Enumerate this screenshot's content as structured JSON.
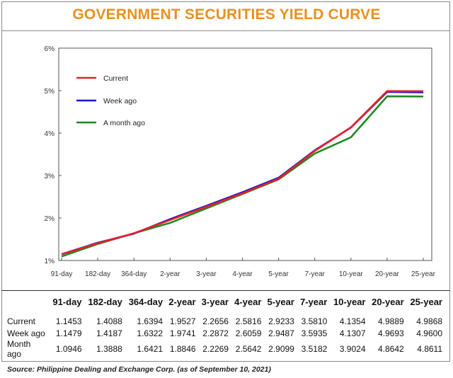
{
  "title": "GOVERNMENT SECURITIES YIELD CURVE",
  "source": "Source: Philippine Dealing and Exchange Corp. (as of September 10, 2021)",
  "chart_data": {
    "type": "line",
    "categories": [
      "91-day",
      "182-day",
      "364-day",
      "2-year",
      "3-year",
      "4-year",
      "5-year",
      "7-year",
      "10-year",
      "20-year",
      "25-year"
    ],
    "yticks": [
      "1%",
      "2%",
      "3%",
      "4%",
      "5%",
      "6%"
    ],
    "ylim": [
      1,
      6
    ],
    "legend_position": "top-left",
    "grid": false,
    "series": [
      {
        "name": "Current",
        "color": "#e8202a",
        "values": [
          1.1453,
          1.4088,
          1.6394,
          1.9527,
          2.2656,
          2.5816,
          2.9233,
          3.581,
          4.1354,
          4.9889,
          4.9868
        ]
      },
      {
        "name": "Week ago",
        "color": "#1a12d6",
        "values": [
          1.1479,
          1.4187,
          1.6322,
          1.9741,
          2.2872,
          2.6059,
          2.9487,
          3.5935,
          4.1307,
          4.9693,
          4.96
        ]
      },
      {
        "name": "A month ago",
        "color": "#1f8a1f",
        "values": [
          1.0946,
          1.3888,
          1.6421,
          1.8846,
          2.2269,
          2.5642,
          2.9099,
          3.5182,
          3.9024,
          4.8642,
          4.8611
        ]
      }
    ]
  },
  "table": {
    "headers": [
      "91-day",
      "182-day",
      "364-day",
      "2-year",
      "3-year",
      "4-year",
      "5-year",
      "7-year",
      "10-year",
      "20-year",
      "25-year"
    ],
    "rows": [
      {
        "label": "Current",
        "values": [
          "1.1453",
          "1.4088",
          "1.6394",
          "1.9527",
          "2.2656",
          "2.5816",
          "2.9233",
          "3.5810",
          "4.1354",
          "4.9889",
          "4.9868"
        ]
      },
      {
        "label": "Week ago",
        "values": [
          "1.1479",
          "1.4187",
          "1.6322",
          "1.9741",
          "2.2872",
          "2.6059",
          "2.9487",
          "3.5935",
          "4.1307",
          "4.9693",
          "4.9600"
        ]
      },
      {
        "label": "Month ago",
        "values": [
          "1.0946",
          "1.3888",
          "1.6421",
          "1.8846",
          "2.2269",
          "2.5642",
          "2.9099",
          "3.5182",
          "3.9024",
          "4.8642",
          "4.8611"
        ]
      }
    ]
  }
}
